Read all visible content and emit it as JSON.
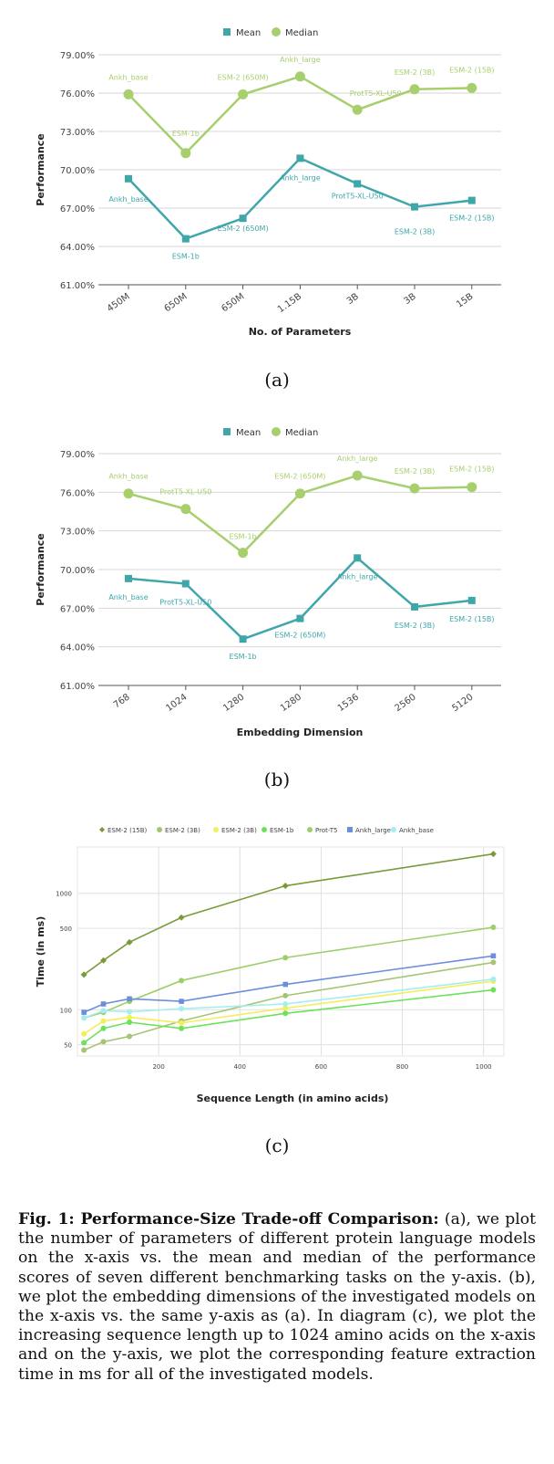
{
  "chart_data": [
    {
      "type": "line",
      "title": "",
      "xlabel": "No. of Parameters",
      "ylabel": "Performance",
      "categories": [
        "450M",
        "650M",
        "650M",
        "1.15B",
        "3B",
        "3B",
        "15B"
      ],
      "ylim": [
        61,
        79
      ],
      "yticks": [
        "61.00%",
        "64.00%",
        "67.00%",
        "70.00%",
        "73.00%",
        "76.00%",
        "79.00%"
      ],
      "series": [
        {
          "name": "Mean",
          "color": "#3fa6aa",
          "marker": "square",
          "values": [
            69.3,
            64.6,
            66.2,
            70.9,
            68.9,
            67.1,
            67.6
          ],
          "labels": [
            "Ankh_base",
            "ESM-1b",
            "ESM-2 (650M)",
            "Ankh_large",
            "ProtT5-XL-U50",
            "ESM-2 (3B)",
            "ESM-2 (15B)"
          ]
        },
        {
          "name": "Median",
          "color": "#a8cf6e",
          "marker": "circle",
          "values": [
            75.9,
            71.3,
            75.9,
            77.3,
            74.7,
            76.3,
            76.4
          ],
          "labels": [
            "Ankh_base",
            "ESM-1b",
            "ESM-2 (650M)",
            "Ankh_large",
            "ProtT5-XL-U50",
            "ESM-2 (3B)",
            "ESM-2 (15B)"
          ]
        }
      ]
    },
    {
      "type": "line",
      "title": "",
      "xlabel": "Embedding Dimension",
      "ylabel": "Performance",
      "categories": [
        "768",
        "1024",
        "1280",
        "1280",
        "1536",
        "2560",
        "5120"
      ],
      "ylim": [
        61,
        79
      ],
      "yticks": [
        "61.00%",
        "64.00%",
        "67.00%",
        "70.00%",
        "73.00%",
        "76.00%",
        "79.00%"
      ],
      "series": [
        {
          "name": "Mean",
          "color": "#3fa6aa",
          "marker": "square",
          "values": [
            69.3,
            68.9,
            64.6,
            66.2,
            70.9,
            67.1,
            67.6
          ],
          "labels": [
            "Ankh_base",
            "ProtT5-XL-U50",
            "ESM-1b",
            "ESM-2 (650M)",
            "Ankh_large",
            "ESM-2 (3B)",
            "ESM-2 (15B)"
          ]
        },
        {
          "name": "Median",
          "color": "#a8cf6e",
          "marker": "circle",
          "values": [
            75.9,
            74.7,
            71.3,
            75.9,
            77.3,
            76.3,
            76.4
          ],
          "labels": [
            "Ankh_base",
            "ProtT5-XL-U50",
            "ESM-1b",
            "ESM-2 (650M)",
            "Ankh_large",
            "ESM-2 (3B)",
            "ESM-2 (15B)"
          ]
        }
      ]
    },
    {
      "type": "line",
      "title": "",
      "xlabel": "Sequence Length (in amino acids)",
      "ylabel": "Time (in ms)",
      "x": [
        16,
        64,
        128,
        256,
        512,
        1024
      ],
      "xticks": [
        "200",
        "400",
        "600",
        "800",
        "1000"
      ],
      "xtick_values": [
        200,
        400,
        600,
        800,
        1000
      ],
      "xlim": [
        0,
        1050
      ],
      "yscale": "log",
      "ylim": [
        40,
        2500
      ],
      "yticks": [
        "50",
        "100",
        "500",
        "1000"
      ],
      "ytick_values": [
        50,
        100,
        500,
        1000
      ],
      "series": [
        {
          "name": "ESM-2 (15B)",
          "color": "#7a9a3a",
          "marker": "diamond",
          "values": [
            200,
            265,
            380,
            620,
            1160,
            2180
          ]
        },
        {
          "name": "ESM-2 (3B)",
          "color": "#a6c476",
          "marker": "circle",
          "values": [
            45,
            53,
            59,
            80,
            132,
            255
          ]
        },
        {
          "name": "ESM-2 (3B)",
          "color": "#f4ee5a",
          "marker": "circle",
          "values": [
            62,
            80,
            86,
            77,
            103,
            176
          ]
        },
        {
          "name": "ESM-1b",
          "color": "#6ce25a",
          "marker": "circle",
          "values": [
            52,
            69,
            78,
            69,
            93,
            148
          ]
        },
        {
          "name": "Prot-T5",
          "color": "#9ccf6a",
          "marker": "circle",
          "values": [
            85,
            95,
            118,
            178,
            280,
            510
          ]
        },
        {
          "name": "Ankh_large",
          "color": "#6c8fdc",
          "marker": "square",
          "values": [
            95,
            112,
            124,
            118,
            165,
            290
          ]
        },
        {
          "name": "Ankh_base",
          "color": "#a4eef0",
          "marker": "circle",
          "values": [
            85,
            98,
            96,
            102,
            112,
            183
          ]
        }
      ]
    }
  ],
  "subfigure_labels": [
    "(a)",
    "(b)",
    "(c)"
  ],
  "caption": {
    "fig_label": "Fig. 1",
    "title": ": Performance-Size Trade-off Comparison:",
    "body": " (a), we plot the number of parameters of different protein language models on the x-axis vs. the mean and median of the performance scores of seven different benchmarking tasks on the y-axis. (b), we plot the embedding dimensions of the investigated models on the x-axis vs. the same y-axis as (a). In diagram (c), we plot the increasing sequence length up to 1024 amino acids on the x-axis and on the y-axis, we plot the corresponding feature extraction time in ms for all of the investigated models."
  }
}
